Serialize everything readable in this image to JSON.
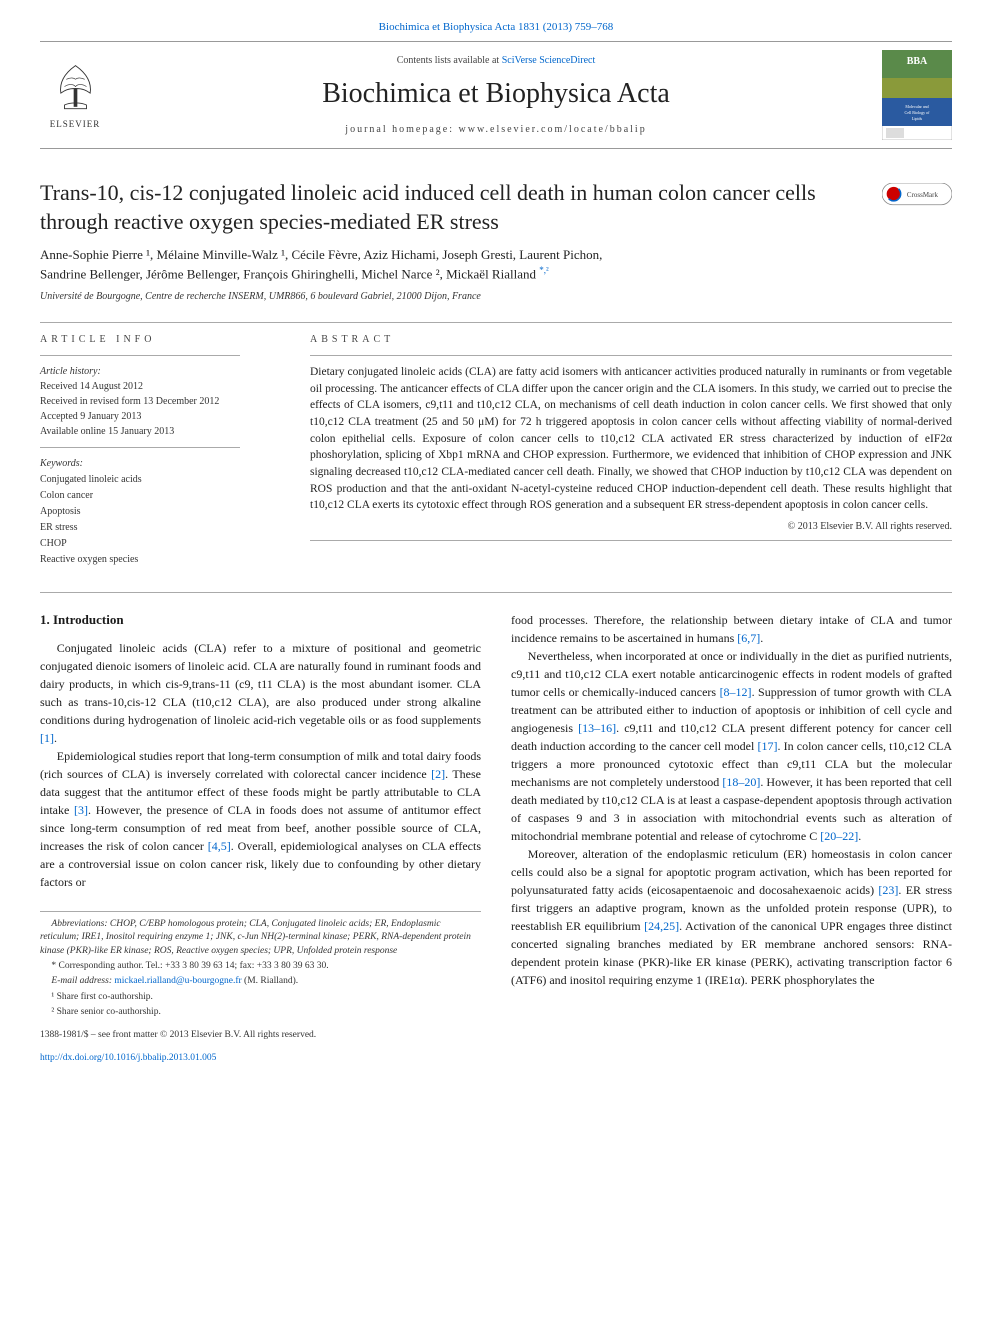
{
  "colors": {
    "link": "#0066cc",
    "text": "#1a1a1a",
    "rule": "#aaaaaa",
    "bg": "#ffffff",
    "cover_top": "#5a8a4a",
    "cover_mid": "#8a9a3a",
    "cover_band": "#2a5aa0"
  },
  "header": {
    "cite_line": "Biochimica et Biophysica Acta 1831 (2013) 759–768",
    "contents_prefix": "Contents lists available at ",
    "contents_link": "SciVerse ScienceDirect",
    "journal_title": "Biochimica et Biophysica Acta",
    "homepage_label": "journal homepage: www.elsevier.com/locate/bbalip",
    "publisher": "ELSEVIER",
    "cover_top_text": "BBA",
    "cover_sub_text": "Molecular and Cell Biology of Lipids"
  },
  "title": "Trans-10, cis-12 conjugated linoleic acid induced cell death in human colon cancer cells through reactive oxygen species-mediated ER stress",
  "crossmark": "CrossMark",
  "authors_line_1": "Anne-Sophie Pierre ¹, Mélaine Minville-Walz ¹, Cécile Fèvre, Aziz Hichami, Joseph Gresti, Laurent Pichon,",
  "authors_line_2": "Sandrine Bellenger, Jérôme Bellenger, François Ghiringhelli, Michel Narce ², Mickaël Rialland ",
  "authors_sup2": "*,²",
  "affiliation": "Université de Bourgogne, Centre de recherche INSERM, UMR866, 6 boulevard Gabriel, 21000 Dijon, France",
  "info": {
    "label": "ARTICLE INFO",
    "history_head": "Article history:",
    "history": [
      "Received 14 August 2012",
      "Received in revised form 13 December 2012",
      "Accepted 9 January 2013",
      "Available online 15 January 2013"
    ],
    "keywords_head": "Keywords:",
    "keywords": [
      "Conjugated linoleic acids",
      "Colon cancer",
      "Apoptosis",
      "ER stress",
      "CHOP",
      "Reactive oxygen species"
    ]
  },
  "abstract": {
    "label": "ABSTRACT",
    "text": "Dietary conjugated linoleic acids (CLA) are fatty acid isomers with anticancer activities produced naturally in ruminants or from vegetable oil processing. The anticancer effects of CLA differ upon the cancer origin and the CLA isomers. In this study, we carried out to precise the effects of CLA isomers, c9,t11 and t10,c12 CLA, on mechanisms of cell death induction in colon cancer cells. We first showed that only t10,c12 CLA treatment (25 and 50 μM) for 72 h triggered apoptosis in colon cancer cells without affecting viability of normal-derived colon epithelial cells. Exposure of colon cancer cells to t10,c12 CLA activated ER stress characterized by induction of eIF2α phoshorylation, splicing of Xbp1 mRNA and CHOP expression. Furthermore, we evidenced that inhibition of CHOP expression and JNK signaling decreased t10,c12 CLA-mediated cancer cell death. Finally, we showed that CHOP induction by t10,c12 CLA was dependent on ROS production and that the anti-oxidant N-acetyl-cysteine reduced CHOP induction-dependent cell death. These results highlight that t10,c12 CLA exerts its cytotoxic effect through ROS generation and a subsequent ER stress-dependent apoptosis in colon cancer cells.",
    "copyright": "© 2013 Elsevier B.V. All rights reserved."
  },
  "section1_heading": "1. Introduction",
  "paras_left": [
    "Conjugated linoleic acids (CLA) refer to a mixture of positional and geometric conjugated dienoic isomers of linoleic acid. CLA are naturally found in ruminant foods and dairy products, in which cis-9,trans-11 (c9, t11 CLA) is the most abundant isomer. CLA such as trans-10,cis-12 CLA (t10,c12 CLA), are also produced under strong alkaline conditions during hydrogenation of linoleic acid-rich vegetable oils or as food supplements [1].",
    "Epidemiological studies report that long-term consumption of milk and total dairy foods (rich sources of CLA) is inversely correlated with colorectal cancer incidence [2]. These data suggest that the antitumor effect of these foods might be partly attributable to CLA intake [3]. However, the presence of CLA in foods does not assume of antitumor effect since long-term consumption of red meat from beef, another possible source of CLA, increases the risk of colon cancer [4,5]. Overall, epidemiological analyses on CLA effects are a controversial issue on colon cancer risk, likely due to confounding by other dietary factors or"
  ],
  "paras_right": [
    "food processes. Therefore, the relationship between dietary intake of CLA and tumor incidence remains to be ascertained in humans [6,7].",
    "Nevertheless, when incorporated at once or individually in the diet as purified nutrients, c9,t11 and t10,c12 CLA exert notable anticarcinogenic effects in rodent models of grafted tumor cells or chemically-induced cancers [8–12]. Suppression of tumor growth with CLA treatment can be attributed either to induction of apoptosis or inhibition of cell cycle and angiogenesis [13–16]. c9,t11 and t10,c12 CLA present different potency for cancer cell death induction according to the cancer cell model [17]. In colon cancer cells, t10,c12 CLA triggers a more pronounced cytotoxic effect than c9,t11 CLA but the molecular mechanisms are not completely understood [18–20]. However, it has been reported that cell death mediated by t10,c12 CLA is at least a caspase-dependent apoptosis through activation of caspases 9 and 3 in association with mitochondrial events such as alteration of mitochondrial membrane potential and release of cytochrome C [20–22].",
    "Moreover, alteration of the endoplasmic reticulum (ER) homeostasis in colon cancer cells could also be a signal for apoptotic program activation, which has been reported for polyunsaturated fatty acids (eicosapentaenoic and docosahexaenoic acids) [23]. ER stress first triggers an adaptive program, known as the unfolded protein response (UPR), to reestablish ER equilibrium [24,25]. Activation of the canonical UPR engages three distinct concerted signaling branches mediated by ER membrane anchored sensors: RNA-dependent protein kinase (PKR)-like ER kinase (PERK), activating transcription factor 6 (ATF6) and inositol requiring enzyme 1 (IRE1α). PERK phosphorylates the"
  ],
  "abbrev": "Abbreviations: CHOP, C/EBP homologous protein; CLA, Conjugated linoleic acids; ER, Endoplasmic reticulum; IRE1, Inositol requiring enzyme 1; JNK, c-Jun NH(2)-terminal kinase; PERK, RNA-dependent protein kinase (PKR)-like ER kinase; ROS, Reactive oxygen species; UPR, Unfolded protein response",
  "corresp": "* Corresponding author. Tel.: +33 3 80 39 63 14; fax: +33 3 80 39 63 30.",
  "email_label": "E-mail address: ",
  "email": "mickael.rialland@u-bourgogne.fr",
  "email_suffix": " (M. Rialland).",
  "note1": "¹ Share first co-authorship.",
  "note2": "² Share senior co-authorship.",
  "footer": {
    "issn": "1388-1981/$ – see front matter © 2013 Elsevier B.V. All rights reserved.",
    "doi": "http://dx.doi.org/10.1016/j.bbalip.2013.01.005"
  }
}
